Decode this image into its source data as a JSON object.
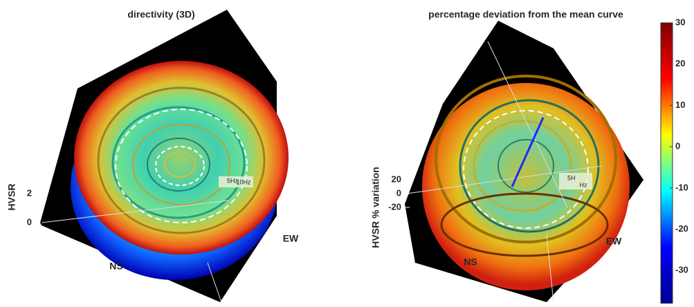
{
  "chart_data": [
    {
      "type": "surface3d",
      "title": "directivity (3D)",
      "zlabel": "HVSR",
      "zlim": [
        0,
        2
      ],
      "zticks": [
        0,
        2
      ],
      "axis_labels": [
        "NS",
        "EW"
      ],
      "annotations": [
        "5Hz",
        "10Hz"
      ]
    },
    {
      "type": "surface3d",
      "title": "percentage deviation from the mean curve",
      "zlabel": "HVSR % variation",
      "zlim": [
        -20,
        20
      ],
      "zticks": [
        -20,
        0,
        20
      ],
      "axis_labels": [
        "NS",
        "EW"
      ],
      "annotations": [
        "5H",
        "Hz"
      ],
      "colorbar": {
        "lim": [
          -38,
          30
        ],
        "ticks": [
          30,
          20,
          10,
          0,
          -10,
          -20,
          -30
        ],
        "colormap": [
          "#00008f",
          "#0000ff",
          "#00ffff",
          "#ffff00",
          "#ff0000",
          "#800000"
        ]
      }
    }
  ]
}
